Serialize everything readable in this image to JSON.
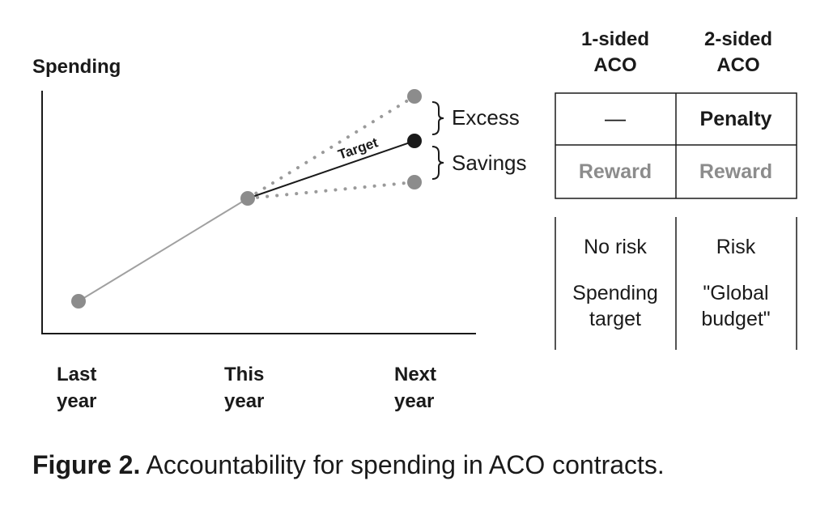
{
  "chart": {
    "y_label": "Spending",
    "x_ticks": [
      {
        "line1": "Last",
        "line2": "year"
      },
      {
        "line1": "This",
        "line2": "year"
      },
      {
        "line1": "Next",
        "line2": "year"
      }
    ],
    "target_label": "Target",
    "excess_label": "Excess",
    "savings_label": "Savings"
  },
  "table": {
    "columns": [
      {
        "line1": "1-sided",
        "line2": "ACO"
      },
      {
        "line1": "2-sided",
        "line2": "ACO"
      }
    ],
    "excess_row": [
      "—",
      "Penalty"
    ],
    "savings_row": [
      "Reward",
      "Reward"
    ],
    "risk_row": [
      "No risk",
      "Risk"
    ],
    "type_row": [
      {
        "line1": "Spending",
        "line2": "target"
      },
      {
        "line1": "\"Global",
        "line2": "budget\""
      }
    ]
  },
  "caption": {
    "label": "Figure 2.",
    "text": " Accountability for spending in ACO contracts."
  },
  "colors": {
    "text": "#1a1a1a",
    "gray_point": "#8c8c8c",
    "trend_line": "#a0a0a0",
    "target_point": "#1a1a1a"
  }
}
